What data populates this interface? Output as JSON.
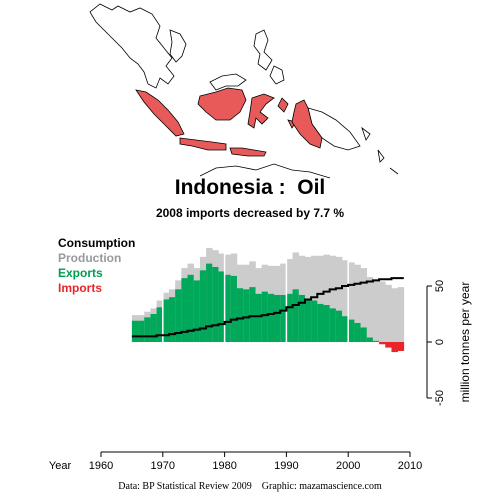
{
  "title": "Indonesia :  Oil",
  "subtitle": "2008 imports decreased by 7.7 %",
  "footer": "Data: BP Statistical Review 2009    Graphic: mazamascience.com",
  "legend": [
    {
      "label": "Consumption",
      "color": "#000000"
    },
    {
      "label": "Production",
      "color": "#999999"
    },
    {
      "label": "Exports",
      "color": "#009E4F"
    },
    {
      "label": "Imports",
      "color": "#E8262A"
    }
  ],
  "colors": {
    "production_fill": "#cccccc",
    "exports_fill": "#00a859",
    "imports_fill": "#e8262a",
    "map_highlight": "#e85a5a"
  },
  "chart_data": {
    "type": "area",
    "x": [
      1965,
      1966,
      1967,
      1968,
      1969,
      1970,
      1971,
      1972,
      1973,
      1974,
      1975,
      1976,
      1977,
      1978,
      1979,
      1980,
      1981,
      1982,
      1983,
      1984,
      1985,
      1986,
      1987,
      1988,
      1989,
      1990,
      1991,
      1992,
      1993,
      1994,
      1995,
      1996,
      1997,
      1998,
      1999,
      2000,
      2001,
      2002,
      2003,
      2004,
      2005,
      2006,
      2007,
      2008
    ],
    "series": [
      {
        "name": "Consumption",
        "style": "step-line",
        "values": [
          5,
          5,
          5,
          5,
          6,
          6,
          7,
          8,
          9,
          10,
          11,
          12,
          14,
          15,
          16,
          18,
          20,
          21,
          22,
          23,
          23,
          24,
          25,
          26,
          28,
          31,
          33,
          35,
          38,
          40,
          43,
          45,
          47,
          48,
          50,
          51,
          52,
          53,
          54,
          55,
          56,
          56,
          57,
          57
        ]
      },
      {
        "name": "Production",
        "style": "area",
        "values": [
          24,
          24,
          27,
          30,
          37,
          44,
          47,
          55,
          66,
          70,
          66,
          76,
          84,
          82,
          79,
          78,
          79,
          69,
          69,
          72,
          66,
          69,
          68,
          68,
          70,
          74,
          80,
          77,
          76,
          77,
          77,
          78,
          77,
          76,
          73,
          71,
          69,
          66,
          58,
          56,
          54,
          51,
          48,
          49
        ]
      },
      {
        "name": "Exports",
        "style": "area",
        "values": [
          19,
          19,
          22,
          25,
          31,
          38,
          40,
          47,
          57,
          60,
          55,
          64,
          70,
          67,
          63,
          60,
          59,
          48,
          47,
          49,
          43,
          45,
          43,
          42,
          42,
          43,
          47,
          42,
          38,
          37,
          34,
          33,
          30,
          28,
          23,
          20,
          17,
          13,
          4,
          1,
          0,
          0,
          0,
          0
        ]
      },
      {
        "name": "Imports",
        "style": "area",
        "values": [
          0,
          0,
          0,
          0,
          0,
          0,
          0,
          0,
          0,
          0,
          0,
          0,
          0,
          0,
          0,
          0,
          0,
          0,
          0,
          0,
          0,
          0,
          0,
          0,
          0,
          0,
          0,
          0,
          0,
          0,
          0,
          0,
          0,
          0,
          0,
          0,
          0,
          0,
          0,
          0,
          -2,
          -5,
          -9,
          -8
        ]
      }
    ],
    "xlabel": "Year",
    "ylabel": "million tonnes per year",
    "xlim": [
      1960,
      2010
    ],
    "ylim": [
      -60,
      90
    ],
    "x_ticks": [
      1960,
      1970,
      1980,
      1990,
      2000,
      2010
    ],
    "y_ticks": [
      -50,
      0,
      50
    ],
    "decade_gridlines": [
      1970,
      1980,
      1990,
      2000
    ],
    "grid": false,
    "legend_position": "top-left"
  }
}
